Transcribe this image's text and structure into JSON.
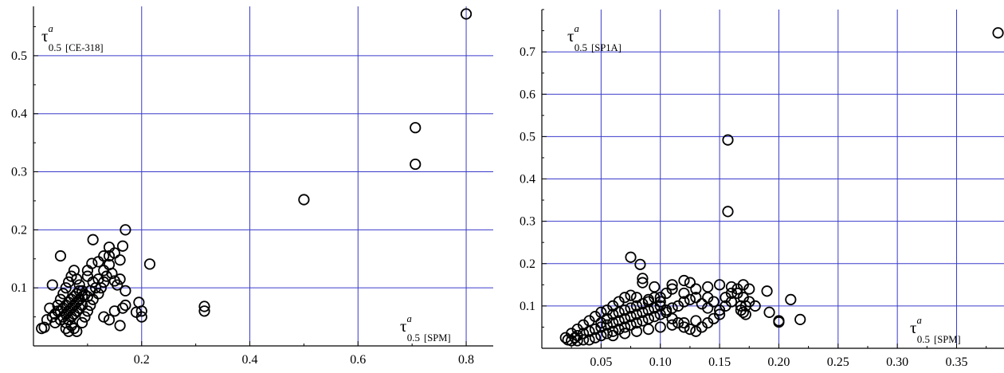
{
  "chart_data": [
    {
      "type": "scatter",
      "title": "",
      "x_label": {
        "base": "τ",
        "sup": "a",
        "sub": "0.5",
        "tag": "[SPM]"
      },
      "y_label": {
        "base": "τ",
        "sup": "a",
        "sub": "0.5",
        "tag": "[CE-318]"
      },
      "xlim": [
        0.0,
        0.85
      ],
      "ylim": [
        0.0,
        0.585
      ],
      "xticks": [
        0.2,
        0.4,
        0.6,
        0.8
      ],
      "xtick_labels": [
        "0.2",
        "0.4",
        "0.6",
        "0.8"
      ],
      "yticks": [
        0.1,
        0.2,
        0.3,
        0.4,
        0.5
      ],
      "ytick_labels": [
        "0.1",
        "0.2",
        "0.3",
        "0.4",
        "0.5"
      ],
      "grid": true,
      "grid_color": "#3a3acc",
      "marker": "open-circle",
      "points": [
        [
          0.8,
          0.572
        ],
        [
          0.706,
          0.376
        ],
        [
          0.706,
          0.313
        ],
        [
          0.5,
          0.252
        ],
        [
          0.316,
          0.068
        ],
        [
          0.316,
          0.06
        ],
        [
          0.215,
          0.141
        ],
        [
          0.2,
          0.06
        ],
        [
          0.2,
          0.05
        ],
        [
          0.195,
          0.075
        ],
        [
          0.19,
          0.058
        ],
        [
          0.17,
          0.2
        ],
        [
          0.165,
          0.172
        ],
        [
          0.16,
          0.148
        ],
        [
          0.15,
          0.16
        ],
        [
          0.14,
          0.17
        ],
        [
          0.14,
          0.155
        ],
        [
          0.13,
          0.155
        ],
        [
          0.12,
          0.145
        ],
        [
          0.11,
          0.183
        ],
        [
          0.108,
          0.142
        ],
        [
          0.1,
          0.13
        ],
        [
          0.17,
          0.07
        ],
        [
          0.165,
          0.065
        ],
        [
          0.16,
          0.035
        ],
        [
          0.15,
          0.06
        ],
        [
          0.14,
          0.045
        ],
        [
          0.13,
          0.05
        ],
        [
          0.17,
          0.095
        ],
        [
          0.16,
          0.115
        ],
        [
          0.155,
          0.105
        ],
        [
          0.15,
          0.112
        ],
        [
          0.145,
          0.125
        ],
        [
          0.14,
          0.14
        ],
        [
          0.13,
          0.13
        ],
        [
          0.12,
          0.115
        ],
        [
          0.115,
          0.1
        ],
        [
          0.11,
          0.11
        ],
        [
          0.105,
          0.095
        ],
        [
          0.1,
          0.085
        ],
        [
          0.05,
          0.155
        ],
        [
          0.035,
          0.105
        ],
        [
          0.03,
          0.065
        ],
        [
          0.025,
          0.045
        ],
        [
          0.02,
          0.032
        ],
        [
          0.015,
          0.03
        ],
        [
          0.04,
          0.055
        ],
        [
          0.045,
          0.07
        ],
        [
          0.05,
          0.08
        ],
        [
          0.055,
          0.09
        ],
        [
          0.06,
          0.1
        ],
        [
          0.065,
          0.11
        ],
        [
          0.07,
          0.12
        ],
        [
          0.075,
          0.13
        ],
        [
          0.08,
          0.115
        ],
        [
          0.085,
          0.105
        ],
        [
          0.09,
          0.095
        ],
        [
          0.095,
          0.088
        ],
        [
          0.05,
          0.045
        ],
        [
          0.055,
          0.05
        ],
        [
          0.06,
          0.055
        ],
        [
          0.065,
          0.06
        ],
        [
          0.07,
          0.065
        ],
        [
          0.075,
          0.07
        ],
        [
          0.08,
          0.075
        ],
        [
          0.085,
          0.08
        ],
        [
          0.09,
          0.085
        ],
        [
          0.06,
          0.04
        ],
        [
          0.065,
          0.045
        ],
        [
          0.07,
          0.05
        ],
        [
          0.075,
          0.055
        ],
        [
          0.08,
          0.06
        ],
        [
          0.085,
          0.065
        ],
        [
          0.09,
          0.07
        ],
        [
          0.05,
          0.06
        ],
        [
          0.055,
          0.065
        ],
        [
          0.06,
          0.07
        ],
        [
          0.065,
          0.075
        ],
        [
          0.07,
          0.08
        ],
        [
          0.075,
          0.085
        ],
        [
          0.08,
          0.09
        ],
        [
          0.085,
          0.095
        ],
        [
          0.07,
          0.035
        ],
        [
          0.075,
          0.03
        ],
        [
          0.08,
          0.025
        ],
        [
          0.06,
          0.03
        ],
        [
          0.065,
          0.025
        ],
        [
          0.09,
          0.04
        ],
        [
          0.095,
          0.05
        ],
        [
          0.1,
          0.06
        ],
        [
          0.105,
          0.07
        ],
        [
          0.11,
          0.08
        ],
        [
          0.04,
          0.04
        ],
        [
          0.035,
          0.05
        ],
        [
          0.045,
          0.06
        ],
        [
          0.12,
          0.09
        ],
        [
          0.125,
          0.1
        ],
        [
          0.13,
          0.11
        ],
        [
          0.135,
          0.12
        ],
        [
          0.1,
          0.12
        ]
      ]
    },
    {
      "type": "scatter",
      "title": "",
      "x_label": {
        "base": "τ",
        "sup": "a",
        "sub": "0.5",
        "tag": "[SPM]"
      },
      "y_label": {
        "base": "τ",
        "sup": "a",
        "sub": "0.5",
        "tag": "[SP1A]"
      },
      "xlim": [
        0.0,
        0.39
      ],
      "ylim": [
        0.0,
        0.8
      ],
      "xticks": [
        0.05,
        0.1,
        0.15,
        0.2,
        0.25,
        0.3,
        0.35
      ],
      "xtick_labels": [
        "0.05",
        "0.10",
        "0.15",
        "0.20",
        "0.25",
        "0.30",
        "0.35"
      ],
      "yticks": [
        0.1,
        0.2,
        0.3,
        0.4,
        0.5,
        0.6,
        0.7
      ],
      "ytick_labels": [
        "0.1",
        "0.2",
        "0.3",
        "0.4",
        "0.5",
        "0.6",
        "0.7"
      ],
      "grid": true,
      "grid_color": "#3a3acc",
      "marker": "open-circle",
      "points": [
        [
          0.385,
          0.745
        ],
        [
          0.157,
          0.492
        ],
        [
          0.157,
          0.323
        ],
        [
          0.075,
          0.215
        ],
        [
          0.083,
          0.198
        ],
        [
          0.085,
          0.165
        ],
        [
          0.085,
          0.155
        ],
        [
          0.095,
          0.145
        ],
        [
          0.11,
          0.15
        ],
        [
          0.12,
          0.16
        ],
        [
          0.125,
          0.155
        ],
        [
          0.13,
          0.14
        ],
        [
          0.14,
          0.145
        ],
        [
          0.15,
          0.15
        ],
        [
          0.16,
          0.145
        ],
        [
          0.17,
          0.15
        ],
        [
          0.175,
          0.14
        ],
        [
          0.165,
          0.13
        ],
        [
          0.16,
          0.11
        ],
        [
          0.155,
          0.1
        ],
        [
          0.19,
          0.135
        ],
        [
          0.21,
          0.115
        ],
        [
          0.218,
          0.068
        ],
        [
          0.2,
          0.065
        ],
        [
          0.2,
          0.062
        ],
        [
          0.192,
          0.085
        ],
        [
          0.18,
          0.1
        ],
        [
          0.17,
          0.085
        ],
        [
          0.172,
          0.08
        ],
        [
          0.168,
          0.09
        ],
        [
          0.15,
          0.08
        ],
        [
          0.14,
          0.12
        ],
        [
          0.13,
          0.12
        ],
        [
          0.12,
          0.11
        ],
        [
          0.115,
          0.1
        ],
        [
          0.11,
          0.095
        ],
        [
          0.105,
          0.085
        ],
        [
          0.1,
          0.08
        ],
        [
          0.095,
          0.075
        ],
        [
          0.09,
          0.07
        ],
        [
          0.085,
          0.065
        ],
        [
          0.08,
          0.06
        ],
        [
          0.075,
          0.055
        ],
        [
          0.07,
          0.05
        ],
        [
          0.065,
          0.045
        ],
        [
          0.06,
          0.04
        ],
        [
          0.055,
          0.035
        ],
        [
          0.05,
          0.03
        ],
        [
          0.045,
          0.025
        ],
        [
          0.04,
          0.02
        ],
        [
          0.035,
          0.02
        ],
        [
          0.03,
          0.018
        ],
        [
          0.025,
          0.018
        ],
        [
          0.022,
          0.02
        ],
        [
          0.02,
          0.025
        ],
        [
          0.025,
          0.035
        ],
        [
          0.03,
          0.045
        ],
        [
          0.035,
          0.055
        ],
        [
          0.04,
          0.065
        ],
        [
          0.045,
          0.075
        ],
        [
          0.05,
          0.085
        ],
        [
          0.055,
          0.09
        ],
        [
          0.06,
          0.1
        ],
        [
          0.065,
          0.11
        ],
        [
          0.07,
          0.12
        ],
        [
          0.075,
          0.125
        ],
        [
          0.08,
          0.12
        ],
        [
          0.09,
          0.115
        ],
        [
          0.1,
          0.12
        ],
        [
          0.105,
          0.13
        ],
        [
          0.11,
          0.14
        ],
        [
          0.12,
          0.13
        ],
        [
          0.125,
          0.115
        ],
        [
          0.135,
          0.105
        ],
        [
          0.14,
          0.095
        ],
        [
          0.145,
          0.11
        ],
        [
          0.06,
          0.06
        ],
        [
          0.065,
          0.065
        ],
        [
          0.07,
          0.07
        ],
        [
          0.075,
          0.075
        ],
        [
          0.08,
          0.08
        ],
        [
          0.085,
          0.085
        ],
        [
          0.09,
          0.09
        ],
        [
          0.095,
          0.095
        ],
        [
          0.1,
          0.1
        ],
        [
          0.04,
          0.04
        ],
        [
          0.045,
          0.045
        ],
        [
          0.05,
          0.05
        ],
        [
          0.055,
          0.055
        ],
        [
          0.06,
          0.03
        ],
        [
          0.07,
          0.035
        ],
        [
          0.08,
          0.04
        ],
        [
          0.09,
          0.045
        ],
        [
          0.1,
          0.05
        ],
        [
          0.11,
          0.055
        ],
        [
          0.12,
          0.06
        ],
        [
          0.13,
          0.065
        ],
        [
          0.035,
          0.035
        ],
        [
          0.03,
          0.03
        ],
        [
          0.028,
          0.025
        ],
        [
          0.05,
          0.06
        ],
        [
          0.055,
          0.07
        ],
        [
          0.06,
          0.08
        ],
        [
          0.065,
          0.085
        ],
        [
          0.07,
          0.09
        ],
        [
          0.075,
          0.095
        ],
        [
          0.08,
          0.1
        ],
        [
          0.085,
          0.105
        ],
        [
          0.09,
          0.11
        ],
        [
          0.095,
          0.12
        ],
        [
          0.1,
          0.11
        ],
        [
          0.105,
          0.09
        ],
        [
          0.11,
          0.07
        ],
        [
          0.115,
          0.06
        ],
        [
          0.12,
          0.05
        ],
        [
          0.125,
          0.045
        ],
        [
          0.13,
          0.04
        ],
        [
          0.135,
          0.05
        ],
        [
          0.14,
          0.06
        ],
        [
          0.145,
          0.07
        ],
        [
          0.15,
          0.09
        ],
        [
          0.155,
          0.12
        ],
        [
          0.16,
          0.13
        ],
        [
          0.165,
          0.14
        ],
        [
          0.17,
          0.12
        ],
        [
          0.175,
          0.11
        ],
        [
          0.172,
          0.1
        ],
        [
          0.168,
          0.1
        ]
      ]
    }
  ]
}
